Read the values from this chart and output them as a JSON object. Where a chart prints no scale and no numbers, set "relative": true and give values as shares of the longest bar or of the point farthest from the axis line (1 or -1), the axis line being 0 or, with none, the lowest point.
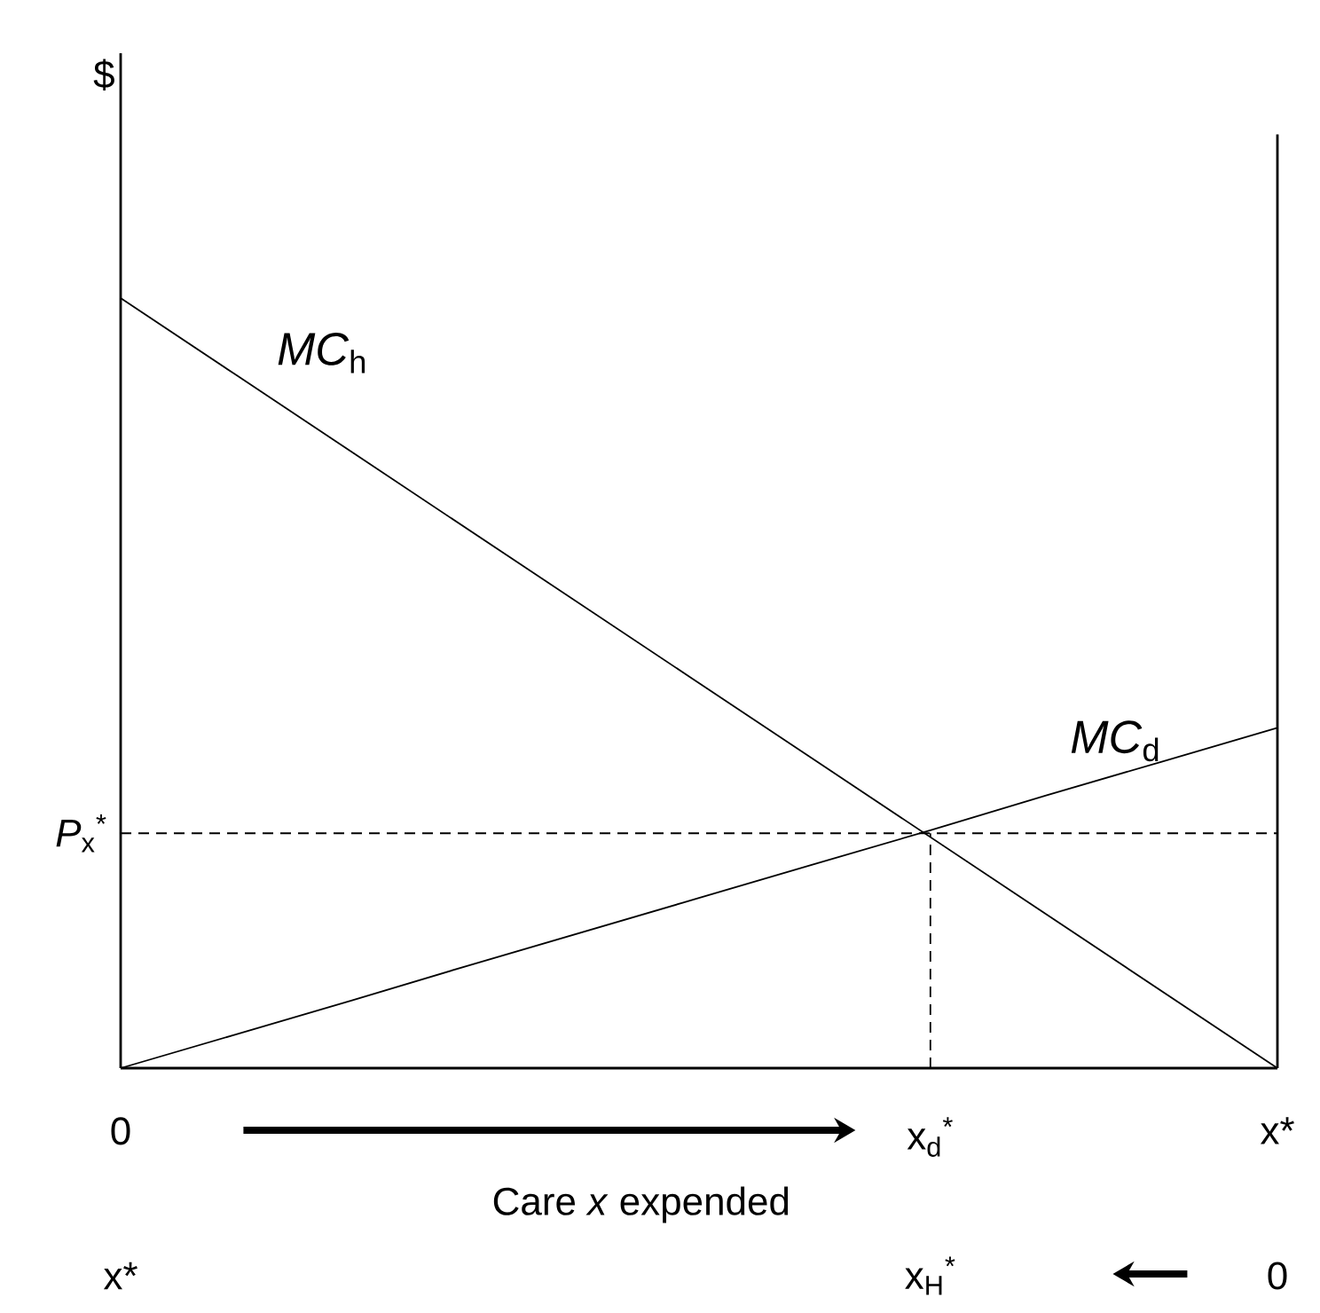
{
  "chart_data": {
    "type": "line",
    "relative": true,
    "xlabel": "Care *x* expended",
    "categories": [
      "0",
      null,
      null,
      null,
      null,
      null,
      null,
      "x$_{d}$$^{*}$",
      null,
      null,
      "x*"
    ],
    "series": [
      {
        "name": "*MC*$_{h}$",
        "color": "#000000",
        "values": [
          1,
          0.9,
          0.8,
          0.7,
          0.6,
          0.5,
          0.4,
          0.3,
          0.2,
          0.1,
          0
        ],
        "line_style": "solid"
      },
      {
        "name": "*MC*$_{d}$",
        "color": "#000000",
        "values": [
          0,
          0.044,
          0.088,
          0.133,
          0.177,
          0.221,
          0.265,
          0.309,
          0.354,
          0.398,
          0.442
        ],
        "line_style": "solid"
      }
    ],
    "ref_lines": [
      {
        "axis": "y",
        "value": 0.305,
        "label": "*P*$_{x}$$^{*}$",
        "line_style": "dashed",
        "color": "#000000"
      },
      {
        "axis": "x",
        "value": "x$_{d}$$^{*}$",
        "line_style": "dashed",
        "color": "#000000"
      }
    ],
    "annotations": [
      "x*",
      "x$_{H}$$^{*}$",
      "0",
      "$"
    ],
    "legend": false,
    "grid": false,
    "marker": "none"
  }
}
